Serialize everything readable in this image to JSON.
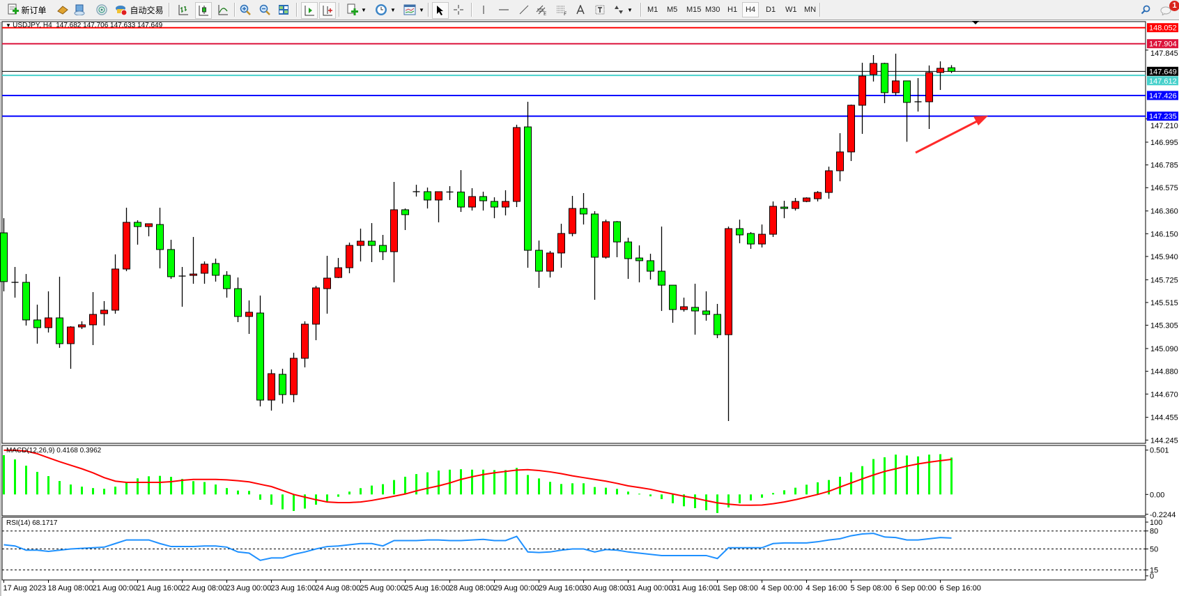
{
  "toolbar": {
    "new_order_label": "新订单",
    "auto_trading_label": "自动交易",
    "timeframes": [
      "M1",
      "M5",
      "M15",
      "M30",
      "H1",
      "H4",
      "D1",
      "W1",
      "MN"
    ],
    "active_timeframe": "H4",
    "notification_count": "1",
    "icons": [
      "new-order-icon",
      "gold-icon",
      "market-watch-icon",
      "signals-icon",
      "auto-trading-icon",
      "bar-chart-icon",
      "candlestick-icon",
      "line-chart-icon",
      "zoom-in-icon",
      "zoom-out-icon",
      "tile-windows-icon",
      "chart-shift-icon",
      "auto-scroll-icon",
      "new-chart-icon",
      "periods-clock-icon",
      "indicators-icon",
      "cursor-icon",
      "crosshair-icon",
      "vertical-line-icon",
      "horizontal-line-icon",
      "trendline-icon",
      "equidistant-channel-icon",
      "fibonacci-icon",
      "text-icon",
      "text-label-icon",
      "arrows-icon",
      "search-icon",
      "notification-icon"
    ]
  },
  "chart": {
    "header": "USDJPY, H4  147.682 147.706 147.633 147.649",
    "macd_label": "MACD(12,26,9) 0.4168 0.3962",
    "rsi_label": "RSI(14) 68.1717",
    "colors": {
      "up": "#ff0000",
      "down": "#00ff00",
      "macd_hist": "#00ff00",
      "macd_signal": "#ff0000",
      "rsi": "#1e90ff",
      "arrow": "#ff2a2a"
    }
  },
  "chart_data": {
    "type": "candlestick",
    "symbol": "USDJPY",
    "timeframe": "H4",
    "candles_ohlc": [
      [
        146.158,
        146.293,
        145.618,
        145.708
      ],
      [
        145.701,
        145.843,
        145.56,
        145.701
      ],
      [
        145.701,
        145.778,
        145.302,
        145.354
      ],
      [
        145.354,
        145.495,
        145.135,
        145.283
      ],
      [
        145.283,
        145.618,
        145.238,
        145.373
      ],
      [
        145.373,
        145.753,
        145.096,
        145.135
      ],
      [
        145.135,
        145.296,
        144.903,
        145.289
      ],
      [
        145.289,
        145.341,
        145.27,
        145.309
      ],
      [
        145.309,
        145.611,
        145.122,
        145.405
      ],
      [
        145.412,
        145.528,
        145.302,
        145.444
      ],
      [
        145.444,
        145.959,
        145.412,
        145.824
      ],
      [
        145.824,
        146.39,
        145.804,
        146.255
      ],
      [
        146.255,
        146.274,
        146.049,
        146.216
      ],
      [
        146.216,
        146.242,
        146.126,
        146.242
      ],
      [
        146.235,
        146.39,
        145.83,
        146.004
      ],
      [
        146.004,
        146.094,
        145.733,
        145.753
      ],
      [
        145.759,
        145.843,
        145.476,
        145.759
      ],
      [
        145.766,
        146.12,
        145.688,
        145.778
      ],
      [
        145.785,
        145.894,
        145.688,
        145.869
      ],
      [
        145.875,
        145.92,
        145.708,
        145.766
      ],
      [
        145.766,
        145.804,
        145.56,
        145.643
      ],
      [
        145.643,
        145.746,
        145.334,
        145.386
      ],
      [
        145.386,
        145.534,
        145.225,
        145.425
      ],
      [
        145.418,
        145.579,
        144.556,
        144.614
      ],
      [
        144.614,
        144.897,
        144.517,
        144.858
      ],
      [
        144.852,
        144.903,
        144.582,
        144.665
      ],
      [
        144.665,
        145.051,
        144.594,
        145.0
      ],
      [
        145.0,
        145.341,
        144.916,
        145.315
      ],
      [
        145.315,
        145.669,
        145.167,
        145.65
      ],
      [
        145.643,
        145.946,
        145.412,
        145.74
      ],
      [
        145.746,
        145.926,
        145.74,
        145.836
      ],
      [
        145.836,
        146.068,
        145.785,
        146.042
      ],
      [
        146.042,
        146.197,
        145.894,
        146.081
      ],
      [
        146.081,
        146.248,
        145.888,
        146.042
      ],
      [
        146.042,
        146.139,
        145.907,
        145.984
      ],
      [
        145.984,
        146.628,
        145.701,
        146.371
      ],
      [
        146.371,
        146.383,
        146.184,
        146.326
      ],
      [
        146.538,
        146.602,
        146.493,
        146.538
      ],
      [
        146.538,
        146.576,
        146.383,
        146.461
      ],
      [
        146.461,
        146.538,
        146.255,
        146.538
      ],
      [
        146.535,
        146.589,
        146.461,
        146.535
      ],
      [
        146.535,
        146.737,
        146.351,
        146.396
      ],
      [
        146.396,
        146.57,
        146.364,
        146.493
      ],
      [
        146.493,
        146.538,
        146.364,
        146.454
      ],
      [
        146.448,
        146.486,
        146.293,
        146.396
      ],
      [
        146.396,
        146.551,
        146.319,
        146.448
      ],
      [
        146.448,
        147.156,
        146.396,
        147.13
      ],
      [
        147.136,
        147.368,
        145.836,
        145.997
      ],
      [
        145.997,
        146.087,
        145.65,
        145.804
      ],
      [
        145.804,
        145.991,
        145.746,
        145.972
      ],
      [
        145.972,
        146.242,
        145.836,
        146.152
      ],
      [
        146.152,
        146.499,
        146.126,
        146.383
      ],
      [
        146.383,
        146.525,
        146.235,
        146.332
      ],
      [
        146.332,
        146.358,
        145.54,
        145.933
      ],
      [
        145.933,
        146.28,
        145.92,
        146.261
      ],
      [
        146.261,
        146.267,
        145.933,
        146.074
      ],
      [
        146.074,
        146.113,
        145.733,
        145.92
      ],
      [
        145.926,
        146.042,
        145.701,
        145.901
      ],
      [
        145.901,
        145.965,
        145.727,
        145.804
      ],
      [
        145.804,
        146.216,
        145.437,
        145.675
      ],
      [
        145.675,
        145.675,
        145.328,
        145.45
      ],
      [
        145.45,
        145.56,
        145.431,
        145.476
      ],
      [
        145.47,
        145.688,
        145.218,
        145.437
      ],
      [
        145.437,
        145.618,
        145.347,
        145.405
      ],
      [
        145.405,
        145.502,
        145.186,
        145.218
      ],
      [
        145.218,
        146.216,
        144.421,
        146.197
      ],
      [
        146.197,
        146.28,
        146.062,
        146.139
      ],
      [
        146.152,
        146.165,
        146.01,
        146.055
      ],
      [
        146.055,
        146.235,
        146.023,
        146.145
      ],
      [
        146.145,
        146.448,
        146.12,
        146.403
      ],
      [
        146.396,
        146.454,
        146.293,
        146.383
      ],
      [
        146.383,
        146.48,
        146.364,
        146.448
      ],
      [
        146.448,
        146.486,
        146.441,
        146.48
      ],
      [
        146.473,
        146.544,
        146.448,
        146.531
      ],
      [
        146.531,
        146.769,
        146.473,
        146.731
      ],
      [
        146.731,
        147.078,
        146.634,
        146.905
      ],
      [
        146.905,
        147.342,
        146.821,
        147.336
      ],
      [
        147.336,
        147.728,
        147.072,
        147.606
      ],
      [
        147.619,
        147.799,
        147.555,
        147.722
      ],
      [
        147.722,
        147.728,
        147.355,
        147.452
      ],
      [
        147.452,
        147.812,
        147.426,
        147.561
      ],
      [
        147.561,
        147.561,
        146.999,
        147.362
      ],
      [
        147.368,
        147.587,
        147.278,
        147.368
      ],
      [
        147.368,
        147.703,
        147.117,
        147.638
      ],
      [
        147.638,
        147.741,
        147.477,
        147.677
      ],
      [
        147.682,
        147.706,
        147.633,
        147.649
      ]
    ],
    "time_labels": [
      "17 Aug 2023",
      "18 Aug 08:00",
      "21 Aug 00:00",
      "21 Aug 16:00",
      "22 Aug 08:00",
      "23 Aug 00:00",
      "23 Aug 16:00",
      "24 Aug 08:00",
      "25 Aug 00:00",
      "25 Aug 16:00",
      "28 Aug 08:00",
      "29 Aug 00:00",
      "29 Aug 16:00",
      "30 Aug 08:00",
      "31 Aug 00:00",
      "31 Aug 16:00",
      "1 Sep 08:00",
      "4 Sep 00:00",
      "4 Sep 16:00",
      "5 Sep 08:00",
      "6 Sep 00:00",
      "6 Sep 16:00"
    ],
    "time_label_every_n_bars": 4,
    "price_axis": {
      "ticks": [
        "147.845",
        "147.210",
        "146.995",
        "146.785",
        "146.575",
        "146.360",
        "146.150",
        "145.940",
        "145.725",
        "145.515",
        "145.305",
        "145.090",
        "144.880",
        "144.670",
        "144.455",
        "144.245"
      ],
      "range": [
        144.2,
        148.2
      ]
    },
    "horizontal_lines": [
      {
        "price": "148.052",
        "color": "#ff0000",
        "label_color": "#ffffff"
      },
      {
        "price": "147.904",
        "color": "#dc143c",
        "label_color": "#ffffff"
      },
      {
        "price": "147.649",
        "color": "#000000",
        "label_color": "#ffffff",
        "current_price": true
      },
      {
        "price": "147.612",
        "color": "#48d1cc",
        "label_color": "#ffffff"
      },
      {
        "price": "147.426",
        "color": "#0000ff",
        "label_color": "#ffffff"
      },
      {
        "price": "147.235",
        "color": "#0000ff",
        "label_color": "#ffffff"
      }
    ],
    "macd": {
      "params": "12,26,9",
      "axis_labels": [
        "0.501",
        "0.00",
        "-0.2244"
      ],
      "histogram": [
        0.444,
        0.396,
        0.325,
        0.255,
        0.207,
        0.152,
        0.112,
        0.088,
        0.072,
        0.064,
        0.088,
        0.141,
        0.182,
        0.205,
        0.21,
        0.199,
        0.175,
        0.15,
        0.14,
        0.112,
        0.072,
        0.044,
        0.04,
        -0.06,
        -0.116,
        -0.168,
        -0.187,
        -0.16,
        -0.116,
        -0.079,
        -0.026,
        0.032,
        0.071,
        0.1,
        0.116,
        0.163,
        0.2,
        0.23,
        0.25,
        0.27,
        0.28,
        0.285,
        0.28,
        0.28,
        0.275,
        0.275,
        0.3,
        0.22,
        0.181,
        0.142,
        0.118,
        0.126,
        0.126,
        0.084,
        0.076,
        0.063,
        0.032,
        0.008,
        -0.021,
        -0.053,
        -0.1,
        -0.134,
        -0.155,
        -0.179,
        -0.21,
        -0.147,
        -0.1,
        -0.068,
        -0.037,
        0.016,
        0.047,
        0.076,
        0.11,
        0.137,
        0.163,
        0.2,
        0.25,
        0.32,
        0.4,
        0.42,
        0.45,
        0.44,
        0.43,
        0.45,
        0.455,
        0.4168
      ],
      "signal": [
        0.5,
        0.5,
        0.49,
        0.46,
        0.415,
        0.37,
        0.33,
        0.29,
        0.244,
        0.19,
        0.15,
        0.136,
        0.136,
        0.136,
        0.136,
        0.144,
        0.16,
        0.17,
        0.17,
        0.17,
        0.165,
        0.155,
        0.142,
        0.115,
        0.089,
        0.045,
        0.0,
        -0.03,
        -0.06,
        -0.085,
        -0.092,
        -0.092,
        -0.085,
        -0.068,
        -0.045,
        -0.02,
        0.005,
        0.04,
        0.07,
        0.097,
        0.13,
        0.17,
        0.2,
        0.225,
        0.245,
        0.26,
        0.275,
        0.28,
        0.27,
        0.255,
        0.235,
        0.21,
        0.19,
        0.17,
        0.15,
        0.125,
        0.097,
        0.078,
        0.058,
        0.03,
        0.005,
        -0.02,
        -0.042,
        -0.07,
        -0.095,
        -0.11,
        -0.121,
        -0.122,
        -0.12,
        -0.105,
        -0.085,
        -0.06,
        -0.03,
        0.0,
        0.035,
        0.084,
        0.13,
        0.176,
        0.22,
        0.26,
        0.29,
        0.32,
        0.345,
        0.365,
        0.382,
        0.3962
      ]
    },
    "rsi": {
      "period": 14,
      "axis_labels": [
        "100",
        "80",
        "50",
        "15",
        "0"
      ],
      "levels": [
        80,
        50,
        15
      ],
      "values": [
        57,
        55,
        48,
        48,
        46,
        48,
        50,
        51,
        52,
        53,
        59,
        65,
        65,
        65,
        59,
        54,
        54,
        54,
        55,
        55,
        53,
        45,
        43,
        31,
        35,
        35,
        41,
        45,
        50,
        54,
        55,
        57,
        59,
        59,
        55,
        64,
        64,
        64,
        65,
        65,
        64,
        64,
        65,
        66,
        64,
        64,
        71,
        45,
        44,
        45,
        48,
        50,
        50,
        45,
        49,
        48,
        45,
        43,
        41,
        39,
        39,
        39,
        39,
        39,
        34,
        52,
        52,
        52,
        52,
        59,
        60,
        60,
        60,
        62,
        65,
        67,
        72,
        75,
        76,
        70,
        69,
        65,
        65,
        67,
        69,
        68.17
      ]
    }
  }
}
